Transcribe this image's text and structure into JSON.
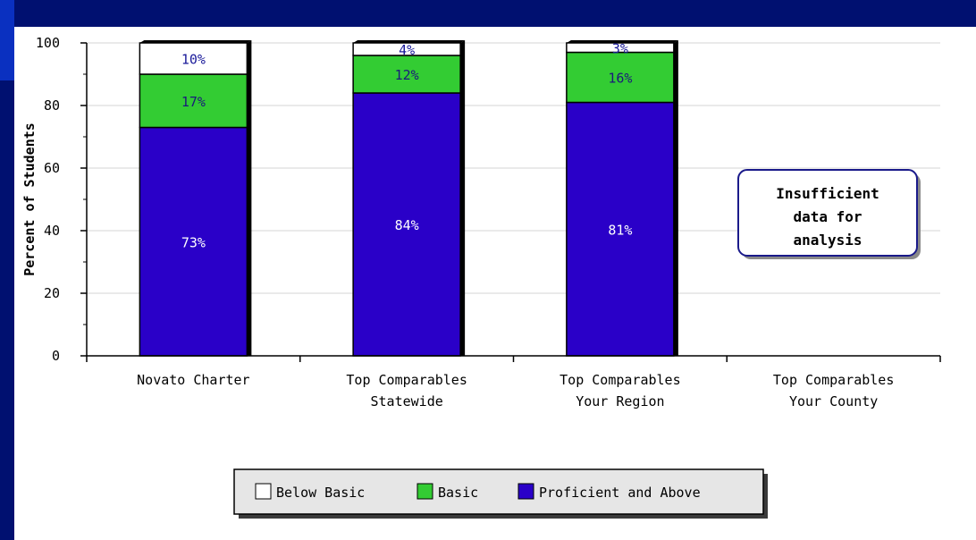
{
  "theme": {
    "frame_color": "#001070",
    "left_strip_color": "#0a30c0",
    "background": "#ffffff"
  },
  "chart_data": {
    "type": "bar",
    "stacked": true,
    "categories": [
      [
        "Novato Charter"
      ],
      [
        "Top Comparables",
        "Statewide"
      ],
      [
        "Top Comparables",
        "Your Region"
      ],
      [
        "Top Comparables",
        "Your County"
      ]
    ],
    "series": [
      {
        "name": "Proficient and Above",
        "color": "#2a00c8",
        "label_color": "#ffffff",
        "values": [
          73,
          84,
          81,
          null
        ],
        "labels": [
          "73%",
          "84%",
          "81%",
          ""
        ]
      },
      {
        "name": "Basic",
        "color": "#33cc33",
        "label_color": "#1a1a7a",
        "values": [
          17,
          12,
          16,
          null
        ],
        "labels": [
          "17%",
          "12%",
          "16%",
          ""
        ]
      },
      {
        "name": "Below Basic",
        "color": "#ffffff",
        "label_color": "#1a1a9a",
        "values": [
          10,
          4,
          3,
          null
        ],
        "labels": [
          "10%",
          "4%",
          "3%",
          ""
        ]
      }
    ],
    "ylabel": "Percent of Students",
    "xlabel": "",
    "ylim": [
      0,
      100
    ],
    "yticks": [
      0,
      20,
      40,
      60,
      80,
      100
    ],
    "grid": true,
    "legend_position": "bottom",
    "annotation": {
      "category_index": 3,
      "lines": [
        "Insufficient",
        "data for",
        "analysis"
      ]
    }
  }
}
